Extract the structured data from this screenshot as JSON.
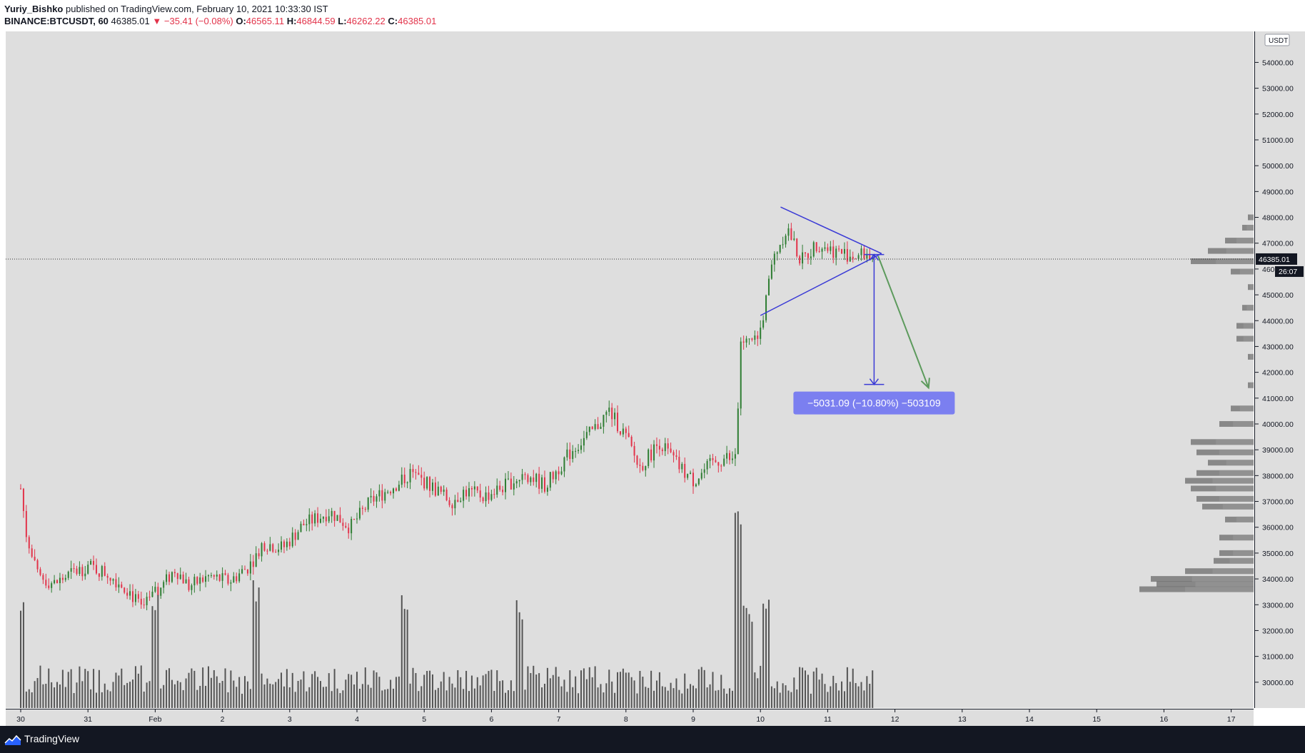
{
  "header": {
    "author": "Yuriy_Bishko",
    "published_text": " published on TradingView.com, February 10, 2021 10:33:30 IST",
    "symbol": "BINANCE:BTCUSDT, 60",
    "last": "46385.01",
    "change": "▼ −35.41 (−0.08%)",
    "o_label": "O:",
    "o": "46565.11",
    "h_label": "H:",
    "h": "46844.59",
    "l_label": "L:",
    "l": "46262.22",
    "c_label": "C:",
    "c": "46385.01"
  },
  "price_axis": {
    "currency": "USDT",
    "last_price_label": "46385.01",
    "countdown": "26:07"
  },
  "measure_label": "−5031.09 (−10.80%) −503109",
  "footer": {
    "brand": "TradingView"
  },
  "colors": {
    "up": "#2e7d32",
    "down": "#e2334a",
    "triangle": "#3a3ad6",
    "arrow": "#5c9a5c",
    "measure_bg": "#7b7ff0",
    "volume": "#555555",
    "volume_profile": "#6b6b6b",
    "background": "#dedede"
  },
  "chart_data": {
    "type": "candlestick",
    "symbol": "BINANCE:BTCUSDT",
    "interval": "60",
    "currency": "USDT",
    "x_tick_labels": [
      "30",
      "31",
      "Feb",
      "2",
      "3",
      "4",
      "5",
      "6",
      "7",
      "8",
      "9",
      "10",
      "11",
      "12",
      "13",
      "14",
      "15",
      "16",
      "17"
    ],
    "y_ticks": [
      30000,
      31000,
      32000,
      33000,
      34000,
      35000,
      36000,
      37000,
      38000,
      39000,
      40000,
      41000,
      42000,
      43000,
      44000,
      45000,
      46000,
      47000,
      48000,
      49000,
      50000,
      51000,
      52000,
      53000,
      54000
    ],
    "ylim": [
      29000,
      55200
    ],
    "price_path": [
      {
        "t": 0,
        "p": 37500
      },
      {
        "t": 0.1,
        "p": 35400
      },
      {
        "t": 0.25,
        "p": 34100
      },
      {
        "t": 0.5,
        "p": 33800
      },
      {
        "t": 0.75,
        "p": 34200
      },
      {
        "t": 1.0,
        "p": 34500
      },
      {
        "t": 1.3,
        "p": 34200
      },
      {
        "t": 1.6,
        "p": 33600
      },
      {
        "t": 1.8,
        "p": 32800
      },
      {
        "t": 2.1,
        "p": 33700
      },
      {
        "t": 2.3,
        "p": 34400
      },
      {
        "t": 2.5,
        "p": 33700
      },
      {
        "t": 2.8,
        "p": 34100
      },
      {
        "t": 3.1,
        "p": 33900
      },
      {
        "t": 3.4,
        "p": 34500
      },
      {
        "t": 3.6,
        "p": 35400
      },
      {
        "t": 3.9,
        "p": 35200
      },
      {
        "t": 4.2,
        "p": 36100
      },
      {
        "t": 4.6,
        "p": 36600
      },
      {
        "t": 4.9,
        "p": 36000
      },
      {
        "t": 5.2,
        "p": 37000
      },
      {
        "t": 5.6,
        "p": 37700
      },
      {
        "t": 5.8,
        "p": 38100
      },
      {
        "t": 6.1,
        "p": 37600
      },
      {
        "t": 6.4,
        "p": 37000
      },
      {
        "t": 6.6,
        "p": 37400
      },
      {
        "t": 6.9,
        "p": 37200
      },
      {
        "t": 7.2,
        "p": 37600
      },
      {
        "t": 7.5,
        "p": 38100
      },
      {
        "t": 7.8,
        "p": 37600
      },
      {
        "t": 8.2,
        "p": 39000
      },
      {
        "t": 8.5,
        "p": 39700
      },
      {
        "t": 8.75,
        "p": 40500
      },
      {
        "t": 9.0,
        "p": 39500
      },
      {
        "t": 9.2,
        "p": 38300
      },
      {
        "t": 9.5,
        "p": 39300
      },
      {
        "t": 9.8,
        "p": 38300
      },
      {
        "t": 10.0,
        "p": 37800
      },
      {
        "t": 10.3,
        "p": 38500
      },
      {
        "t": 10.5,
        "p": 38700
      },
      {
        "t": 10.6,
        "p": 38500
      },
      {
        "t": 10.65,
        "p": 39200
      },
      {
        "t": 10.7,
        "p": 43000
      },
      {
        "t": 10.85,
        "p": 43200
      },
      {
        "t": 10.95,
        "p": 43100
      },
      {
        "t": 11.05,
        "p": 44300
      },
      {
        "t": 11.2,
        "p": 46500
      },
      {
        "t": 11.4,
        "p": 47600
      },
      {
        "t": 11.6,
        "p": 46300
      },
      {
        "t": 11.85,
        "p": 47000
      },
      {
        "t": 12.1,
        "p": 46700
      },
      {
        "t": 12.4,
        "p": 46500
      },
      {
        "t": 12.6,
        "p": 46600
      },
      {
        "t": 12.69,
        "p": 46385
      }
    ],
    "last_price": 46385.01,
    "ohlc_last_bar": {
      "open": 46565.11,
      "high": 46844.59,
      "low": 46262.22,
      "close": 46385.01
    },
    "annotations": {
      "triangle_upper": [
        {
          "t": 11.3,
          "p": 48400
        },
        {
          "t": 12.8,
          "p": 46600
        }
      ],
      "triangle_lower": [
        {
          "t": 11.0,
          "p": 44200
        },
        {
          "t": 12.8,
          "p": 46600
        }
      ],
      "projection_arrow": [
        {
          "t": 12.75,
          "p": 46500
        },
        {
          "t": 13.5,
          "p": 41400
        }
      ],
      "measure": {
        "from": 46560,
        "to": 41529,
        "change": -5031.09,
        "change_pct": -10.8,
        "label": "−5031.09 (−10.80%) −503109"
      }
    },
    "volume_spike_positions": [
      0.0,
      2.0,
      3.5,
      5.7,
      7.4,
      10.65,
      10.85,
      11.1
    ],
    "volume_profile": [
      {
        "price": 33600,
        "level": 1.0
      },
      {
        "price": 33800,
        "level": 0.85
      },
      {
        "price": 34000,
        "level": 0.9
      },
      {
        "price": 34300,
        "level": 0.6
      },
      {
        "price": 34700,
        "level": 0.35
      },
      {
        "price": 35000,
        "level": 0.3
      },
      {
        "price": 35600,
        "level": 0.3
      },
      {
        "price": 36300,
        "level": 0.25
      },
      {
        "price": 36800,
        "level": 0.45
      },
      {
        "price": 37100,
        "level": 0.5
      },
      {
        "price": 37500,
        "level": 0.55
      },
      {
        "price": 37800,
        "level": 0.6
      },
      {
        "price": 38100,
        "level": 0.5
      },
      {
        "price": 38500,
        "level": 0.4
      },
      {
        "price": 38900,
        "level": 0.5
      },
      {
        "price": 39300,
        "level": 0.55
      },
      {
        "price": 40000,
        "level": 0.3
      },
      {
        "price": 40600,
        "level": 0.2
      },
      {
        "price": 41500,
        "level": 0.05
      },
      {
        "price": 42600,
        "level": 0.05
      },
      {
        "price": 43300,
        "level": 0.15
      },
      {
        "price": 43800,
        "level": 0.15
      },
      {
        "price": 44500,
        "level": 0.1
      },
      {
        "price": 45300,
        "level": 0.05
      },
      {
        "price": 45900,
        "level": 0.2
      },
      {
        "price": 46300,
        "level": 0.55
      },
      {
        "price": 46700,
        "level": 0.4
      },
      {
        "price": 47100,
        "level": 0.25
      },
      {
        "price": 47600,
        "level": 0.1
      },
      {
        "price": 48000,
        "level": 0.05
      }
    ],
    "grid": false,
    "legend": "top-left"
  }
}
